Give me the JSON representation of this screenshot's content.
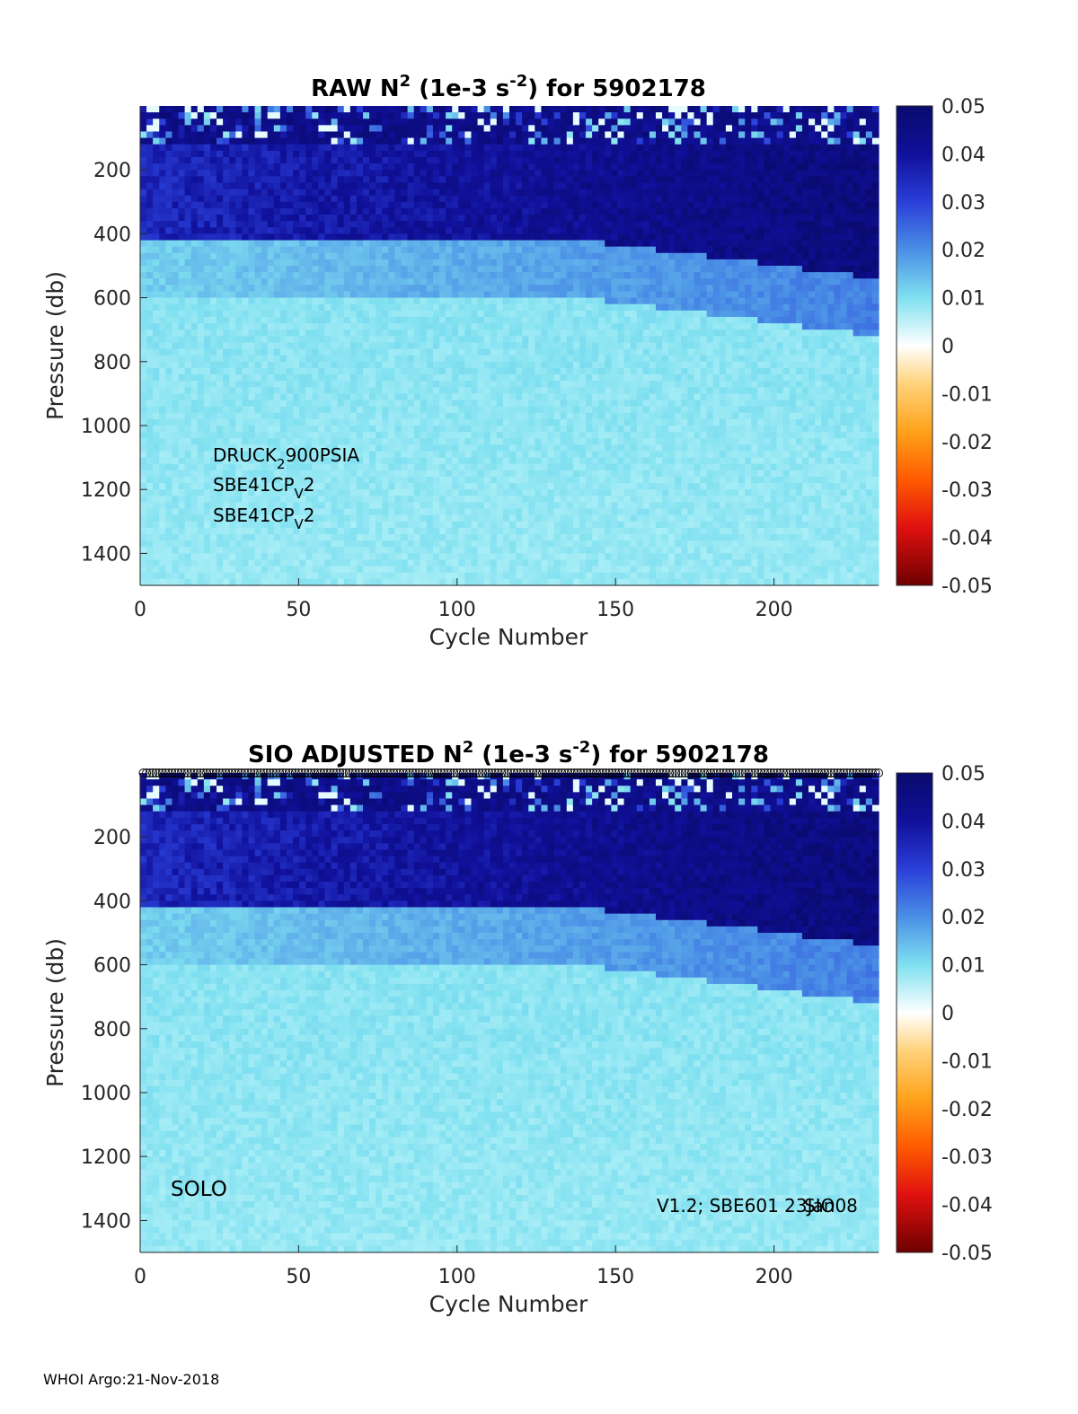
{
  "footer": "WHOI Argo:21-Nov-2018",
  "chart_data": [
    {
      "type": "heatmap",
      "title": {
        "prefix": "RAW N",
        "sup1": "2",
        "mid": " (1e-3 s",
        "sup2": "-2",
        "suffix": ") for 5902178"
      },
      "xlabel": "Cycle Number",
      "ylabel": "Pressure (db)",
      "xlim": [
        0,
        233
      ],
      "ylim": [
        1500,
        0
      ],
      "xticks": [
        "0",
        "50",
        "100",
        "150",
        "200"
      ],
      "yticks": [
        "200",
        "400",
        "600",
        "800",
        "1000",
        "1200",
        "1400"
      ],
      "colorbar": {
        "range": [
          -0.05,
          0.05
        ],
        "ticks": [
          "0.05",
          "0.04",
          "0.03",
          "0.02",
          "0.01",
          "0",
          "-0.01",
          "-0.02",
          "-0.03",
          "-0.04",
          "-0.05"
        ]
      },
      "annotations": [
        {
          "a": "DRUCK",
          "sub": "2",
          "b": "900PSIA"
        },
        {
          "a": "SBE41CP",
          "sub": "V",
          "b": "2"
        },
        {
          "a": "SBE41CP",
          "sub": "V",
          "b": "2"
        }
      ]
    },
    {
      "type": "heatmap",
      "title": {
        "prefix": "SIO  ADJUSTED N",
        "sup1": "2",
        "mid": " (1e-3 s",
        "sup2": "-2",
        "suffix": ") for 5902178"
      },
      "xlabel": "Cycle Number",
      "ylabel": "Pressure (db)",
      "xlim": [
        0,
        233
      ],
      "ylim": [
        1500,
        0
      ],
      "xticks": [
        "0",
        "50",
        "100",
        "150",
        "200"
      ],
      "yticks": [
        "200",
        "400",
        "600",
        "800",
        "1000",
        "1200",
        "1400"
      ],
      "colorbar": {
        "range": [
          -0.05,
          0.05
        ],
        "ticks": [
          "0.05",
          "0.04",
          "0.03",
          "0.02",
          "0.01",
          "0",
          "-0.01",
          "-0.02",
          "-0.03",
          "-0.04",
          "-0.05"
        ]
      },
      "annotations_text": {
        "left": "SOLO",
        "right1": "V1.2; SBE601 23Jan08",
        "right2": "SIO"
      },
      "markers": "circles along the top edge at every cycle"
    }
  ]
}
